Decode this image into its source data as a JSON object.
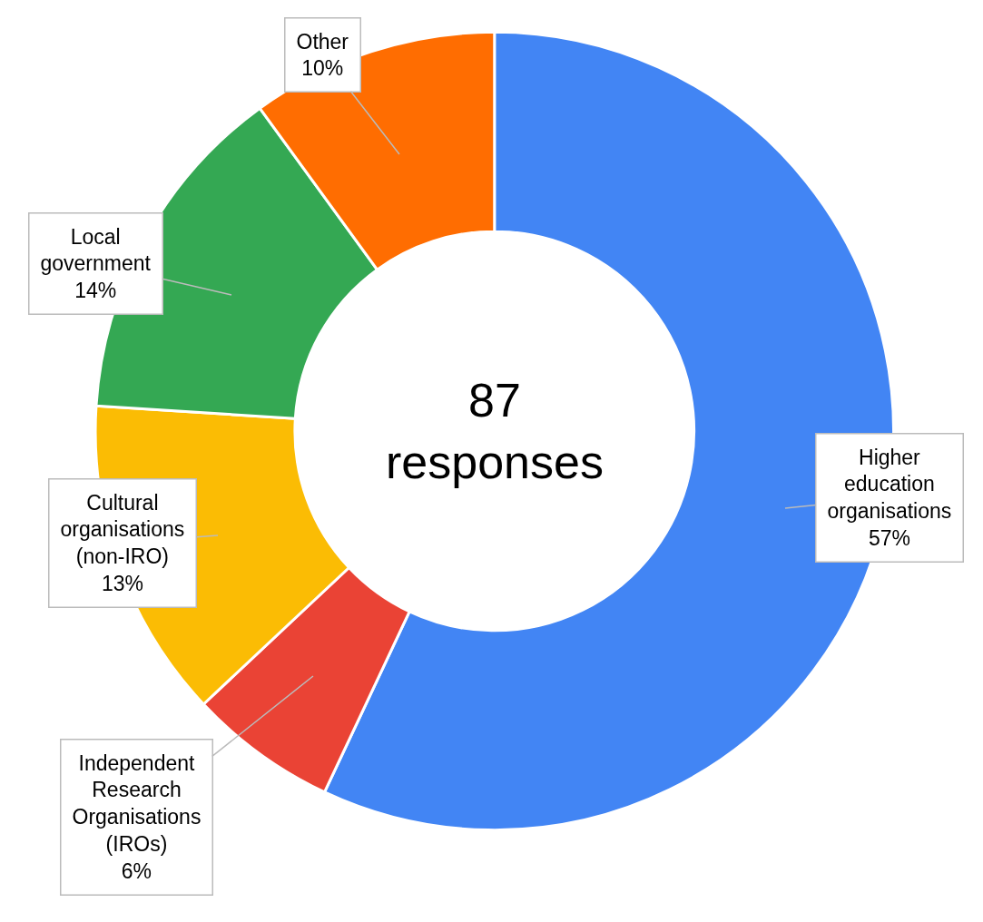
{
  "chart_data": {
    "type": "donut",
    "categories": [
      "Higher education organisations",
      "Independent Research Organisations (IROs)",
      "Cultural organisations (non-IRO)",
      "Local government",
      "Other"
    ],
    "values": [
      57,
      6,
      13,
      14,
      10
    ],
    "value_labels": [
      "57%",
      "6%",
      "13%",
      "14%",
      "10%"
    ],
    "colors": [
      "#4285f4",
      "#ea4335",
      "#fbbc04",
      "#34a853",
      "#ff6d01"
    ],
    "annotations": [
      "87 responses"
    ],
    "legend": false
  }
}
